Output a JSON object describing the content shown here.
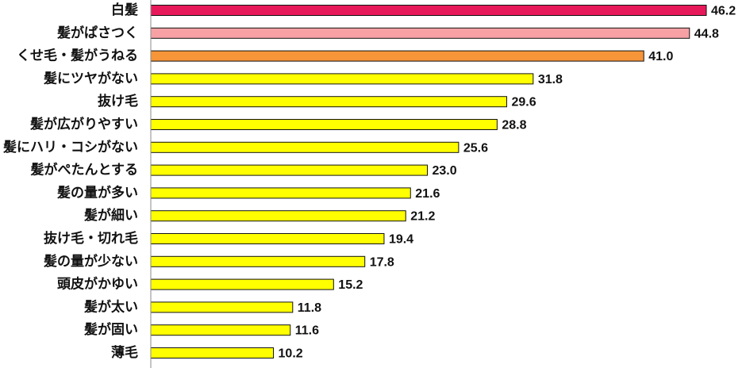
{
  "chart_data": {
    "type": "bar",
    "orientation": "horizontal",
    "title": "",
    "xlabel": "",
    "ylabel": "",
    "xlim": [
      0,
      46.2
    ],
    "grid": false,
    "legend": "none",
    "categories": [
      "白髪",
      "髪がぱさつく",
      "くせ毛・髪がうねる",
      "髪にツヤがない",
      "抜け毛",
      "髪が広がりやすい",
      "髪にハリ・コシがない",
      "髪がぺたんとする",
      "髪の量が多い",
      "髪が細い",
      "抜け毛・切れ毛",
      "髪の量が少ない",
      "頭皮がかゆい",
      "髪が太い",
      "髪が固い",
      "薄毛"
    ],
    "values": [
      46.2,
      44.8,
      41.0,
      31.8,
      29.6,
      28.8,
      25.6,
      23.0,
      21.6,
      21.2,
      19.4,
      17.8,
      15.2,
      11.8,
      11.6,
      10.2
    ],
    "value_labels": [
      "46.2",
      "44.8",
      "41.0",
      "31.8",
      "29.6",
      "28.8",
      "25.6",
      "23.0",
      "21.6",
      "21.2",
      "19.4",
      "17.8",
      "15.2",
      "11.8",
      "11.6",
      "10.2"
    ],
    "bar_colors": [
      "#e8195a",
      "#f7a1a5",
      "#f79539",
      "#ffff00",
      "#ffff00",
      "#ffff00",
      "#ffff00",
      "#ffff00",
      "#ffff00",
      "#ffff00",
      "#ffff00",
      "#ffff00",
      "#ffff00",
      "#ffff00",
      "#ffff00",
      "#ffff00"
    ]
  }
}
